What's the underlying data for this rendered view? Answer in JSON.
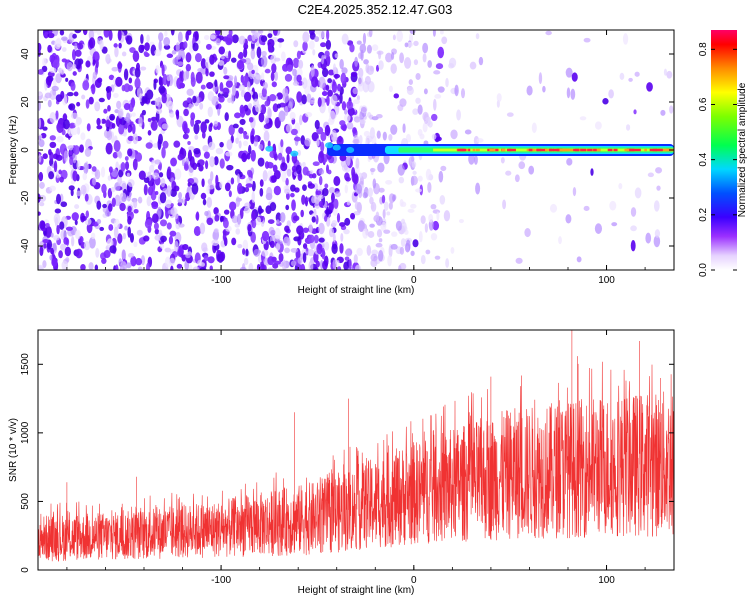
{
  "title": "C2E4.2025.352.12.47.G03",
  "colors": {
    "snr_line": "#f03232",
    "track_core": "#ff1e3c",
    "noise": "#6a10f0"
  },
  "chart_data": [
    {
      "type": "heatmap",
      "xlabel": "Height of straight line (km)",
      "ylabel": "Frequency (Hz)",
      "xlim": [
        -195,
        135
      ],
      "ylim": [
        -50,
        50
      ],
      "xticks": [
        -100,
        0,
        100
      ],
      "xtick_labels": [
        "-100",
        "0",
        "100"
      ],
      "yticks": [
        -40,
        -20,
        0,
        20,
        40
      ],
      "ytick_labels": [
        "-40",
        "-20",
        "0",
        "20",
        "40"
      ],
      "colorbar": {
        "label": "Normalized spectral amplitude",
        "range": [
          0,
          0.87
        ],
        "ticks": [
          0.0,
          0.2,
          0.4,
          0.6,
          0.8
        ],
        "tick_labels": [
          "0.0",
          "0.2",
          "0.4",
          "0.6",
          "0.8"
        ]
      },
      "track": {
        "frequency_hz": 0,
        "start_km": -45,
        "end_km": 135
      }
    },
    {
      "type": "line",
      "xlabel": "Height of straight line (km)",
      "ylabel": "SNR (10 * v/v)",
      "xlim": [
        -195,
        135
      ],
      "ylim": [
        0,
        1750
      ],
      "xticks": [
        -100,
        0,
        100
      ],
      "xtick_labels": [
        "-100",
        "0",
        "100"
      ],
      "yticks": [
        0,
        500,
        1000,
        1500
      ],
      "ytick_labels": [
        "0",
        "500",
        "1000",
        "1500"
      ],
      "trend_x": [
        -195,
        -150,
        -100,
        -50,
        0,
        50,
        100,
        135
      ],
      "trend_mean": [
        230,
        250,
        300,
        380,
        560,
        700,
        760,
        780
      ],
      "trend_spread": [
        170,
        180,
        210,
        270,
        380,
        480,
        520,
        540
      ],
      "spikes_x": [
        -195,
        -180,
        -144,
        -62,
        -34,
        40,
        82,
        85,
        117,
        128
      ],
      "spikes_y": [
        560,
        640,
        680,
        1150,
        1250,
        1410,
        1750,
        1560,
        1670,
        1400
      ]
    }
  ]
}
